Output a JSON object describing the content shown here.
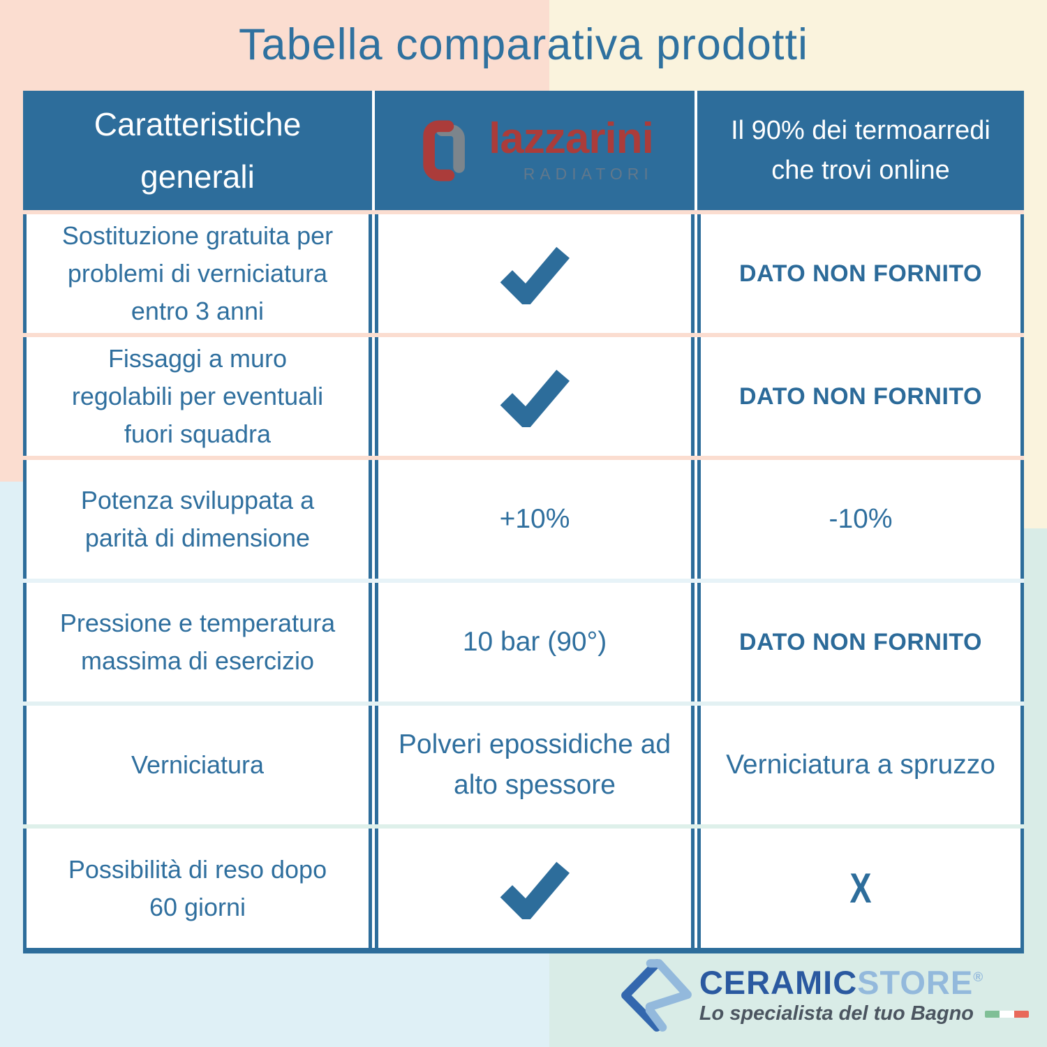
{
  "page": {
    "title": "Tabella comparativa prodotti"
  },
  "colors": {
    "brand_blue": "#2d6d9b",
    "text_blue": "#2f6f9e",
    "lazzarini_red": "#ab3c3a",
    "ceramic_blue": "#2a59a0",
    "store_light_blue": "#93b9dc",
    "bg_peach": "#fbddd0",
    "bg_cream": "#faf3dd",
    "bg_ice": "#dff0f6",
    "bg_mint": "#d9ece7",
    "flag_green": "#7fbf96",
    "flag_red": "#e8695a"
  },
  "table": {
    "header": {
      "col1": "Caratteristiche\ngenerali",
      "brand": "lazzarini",
      "brand_sub": "RADIATORI",
      "col3": "Il 90% dei termoarredi\nche trovi online"
    },
    "separator_colors": [
      "#fbddd0",
      "#fbddd0",
      "#fbddd0",
      "#e7f3f8",
      "#e3f1f3",
      "#def0ea"
    ],
    "rows": [
      {
        "feature": "Sostituzione gratuita per\nproblemi di verniciatura\nentro 3 anni",
        "lazzarini": {
          "kind": "check"
        },
        "online": {
          "kind": "emph",
          "text": "DATO NON FORNITO"
        }
      },
      {
        "feature": "Fissaggi a muro\nregolabili per eventuali\nfuori squadra",
        "lazzarini": {
          "kind": "check"
        },
        "online": {
          "kind": "emph",
          "text": "DATO NON FORNITO"
        }
      },
      {
        "feature": "Potenza sviluppata a\nparità di dimensione",
        "lazzarini": {
          "kind": "text",
          "text": "+10%"
        },
        "online": {
          "kind": "text",
          "text": "-10%"
        }
      },
      {
        "feature": "Pressione e temperatura\nmassima di esercizio",
        "lazzarini": {
          "kind": "text",
          "text": "10 bar (90°)"
        },
        "online": {
          "kind": "emph",
          "text": "DATO NON FORNITO"
        }
      },
      {
        "feature": "Verniciatura",
        "lazzarini": {
          "kind": "text",
          "text": "Polveri epossidiche ad\nalto spessore"
        },
        "online": {
          "kind": "text",
          "text": "Verniciatura a spruzzo"
        }
      },
      {
        "feature": "Possibilità di reso dopo\n60 giorni",
        "lazzarini": {
          "kind": "check"
        },
        "online": {
          "kind": "xmark",
          "text": "X"
        }
      }
    ]
  },
  "footer": {
    "brand_primary": "CERAMIC",
    "brand_secondary": "STORE",
    "registered": "®",
    "tagline": "Lo specialista del tuo Bagno"
  },
  "chart_data": {
    "type": "table",
    "title": "Tabella comparativa prodotti",
    "columns": [
      "Caratteristiche generali",
      "lazzarini RADIATORI",
      "Il 90% dei termoarredi che trovi online"
    ],
    "rows": [
      [
        "Sostituzione gratuita per problemi di verniciatura entro 3 anni",
        "✓",
        "DATO NON FORNITO"
      ],
      [
        "Fissaggi a muro regolabili per eventuali fuori squadra",
        "✓",
        "DATO NON FORNITO"
      ],
      [
        "Potenza sviluppata a parità di dimensione",
        "+10%",
        "-10%"
      ],
      [
        "Pressione e temperatura massima di esercizio",
        "10 bar (90°)",
        "DATO NON FORNITO"
      ],
      [
        "Verniciatura",
        "Polveri epossidiche ad alto spessore",
        "Verniciatura a spruzzo"
      ],
      [
        "Possibilità di reso dopo 60 giorni",
        "✓",
        "X"
      ]
    ]
  }
}
